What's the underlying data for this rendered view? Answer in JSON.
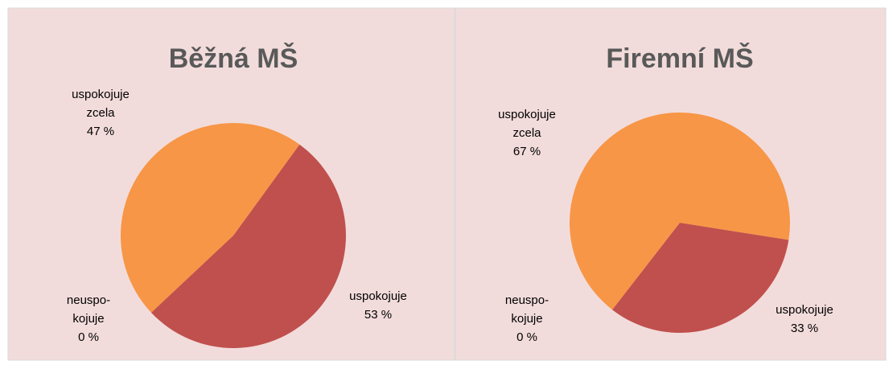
{
  "chart_data": [
    {
      "type": "pie",
      "title": "Běžná MŠ",
      "categories": [
        "uspokojuje",
        "neuspo-kojuje",
        "uspokojuje zcela"
      ],
      "values": [
        53,
        0,
        47
      ],
      "value_labels": [
        "53 %",
        "0 %",
        "47 %"
      ],
      "colors": [
        "#c0504d",
        "#9bbb59",
        "#f79646"
      ]
    },
    {
      "type": "pie",
      "title": "Firemní MŠ",
      "categories": [
        "uspokojuje",
        "neuspo-kojuje",
        "uspokojuje zcela"
      ],
      "values": [
        33,
        0,
        67
      ],
      "value_labels": [
        "33 %",
        "0 %",
        "67 %"
      ],
      "colors": [
        "#c0504d",
        "#9bbb59",
        "#f79646"
      ]
    }
  ]
}
